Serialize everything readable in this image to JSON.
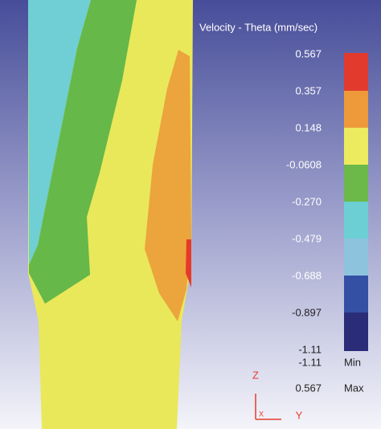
{
  "legend": {
    "title": "Velocity - Theta (mm/sec)",
    "labels": [
      "0.567",
      "0.357",
      "0.148",
      "-0.0608",
      "-0.270",
      "-0.479",
      "-0.688",
      "-0.897",
      "-1.11"
    ]
  },
  "range": {
    "min_value": "-1.11",
    "min_label": "Min",
    "max_value": "0.567",
    "max_label": "Max"
  },
  "axes": {
    "z": "Z",
    "y": "Y",
    "x": "X"
  }
}
